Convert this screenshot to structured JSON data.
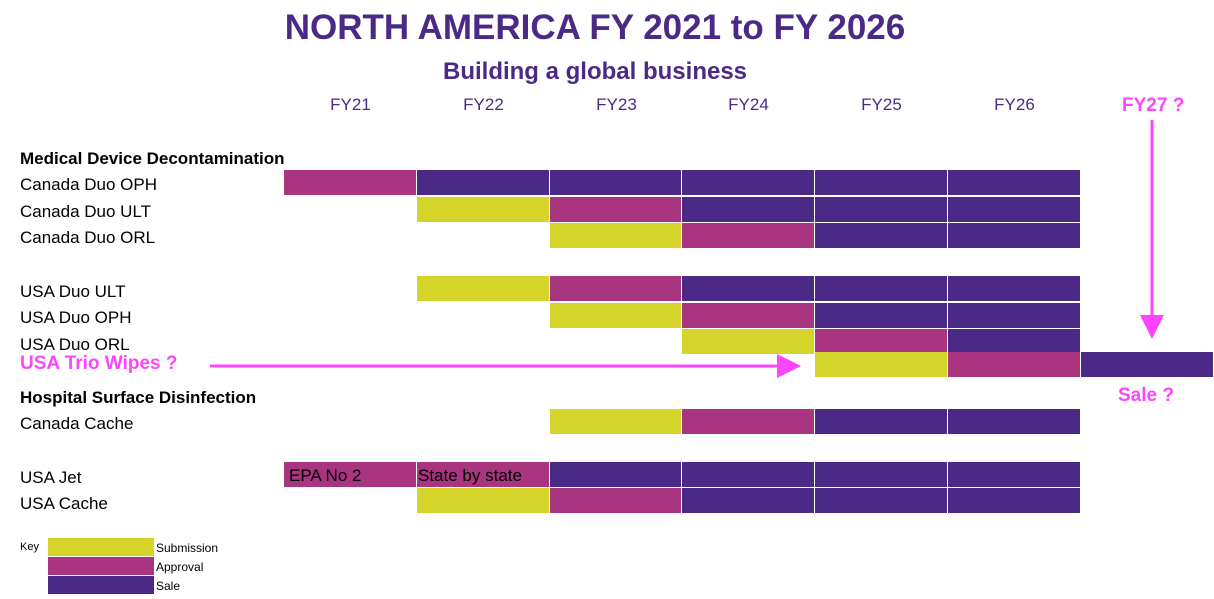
{
  "title": "NORTH AMERICA FY 2021 to FY 2026",
  "subtitle": "Building a global business",
  "years": [
    "FY21",
    "FY22",
    "FY23",
    "FY24",
    "FY25",
    "FY26"
  ],
  "fy27_label": "FY27 ?",
  "sale_question": "Sale ?",
  "trio_label": "USA Trio Wipes ?",
  "sections": {
    "medical": "Medical Device Decontamination",
    "hospital": "Hospital Surface Disinfection"
  },
  "rows": [
    {
      "label": "Canada Duo OPH",
      "cells": [
        "approval",
        "sale",
        "sale",
        "sale",
        "sale",
        "sale"
      ]
    },
    {
      "label": "Canada Duo ULT",
      "cells": [
        null,
        "submission",
        "approval",
        "sale",
        "sale",
        "sale"
      ]
    },
    {
      "label": "Canada Duo ORL",
      "cells": [
        null,
        null,
        "submission",
        "approval",
        "sale",
        "sale"
      ]
    },
    {
      "label": "USA Duo ULT",
      "cells": [
        null,
        "submission",
        "approval",
        "sale",
        "sale",
        "sale"
      ]
    },
    {
      "label": "USA Duo OPH",
      "cells": [
        null,
        null,
        "submission",
        "approval",
        "sale",
        "sale"
      ]
    },
    {
      "label": "USA Duo ORL",
      "cells": [
        null,
        null,
        null,
        "submission",
        "approval",
        "sale"
      ]
    },
    {
      "label": "",
      "cells": [
        null,
        null,
        null,
        null,
        "submission",
        "approval",
        "sale"
      ]
    },
    {
      "label": "Canada Cache",
      "cells": [
        null,
        null,
        "submission",
        "approval",
        "sale",
        "sale"
      ]
    },
    {
      "label": "USA Jet",
      "cells": [
        "approval",
        "approval",
        "sale",
        "sale",
        "sale",
        "sale"
      ]
    },
    {
      "label": "USA Cache",
      "cells": [
        null,
        "submission",
        "approval",
        "sale",
        "sale",
        "sale"
      ]
    }
  ],
  "cell_texts": {
    "usa_jet_fy21": "EPA No 2",
    "usa_jet_fy22": "State by state"
  },
  "key": {
    "label": "Key",
    "submission": "Submission",
    "approval": "Approval",
    "sale": "Sale"
  },
  "colors": {
    "submission": "#d4d42a",
    "approval": "#a93480",
    "sale": "#4a2a86",
    "accent": "#ff44ff",
    "title": "#4a2a86"
  }
}
